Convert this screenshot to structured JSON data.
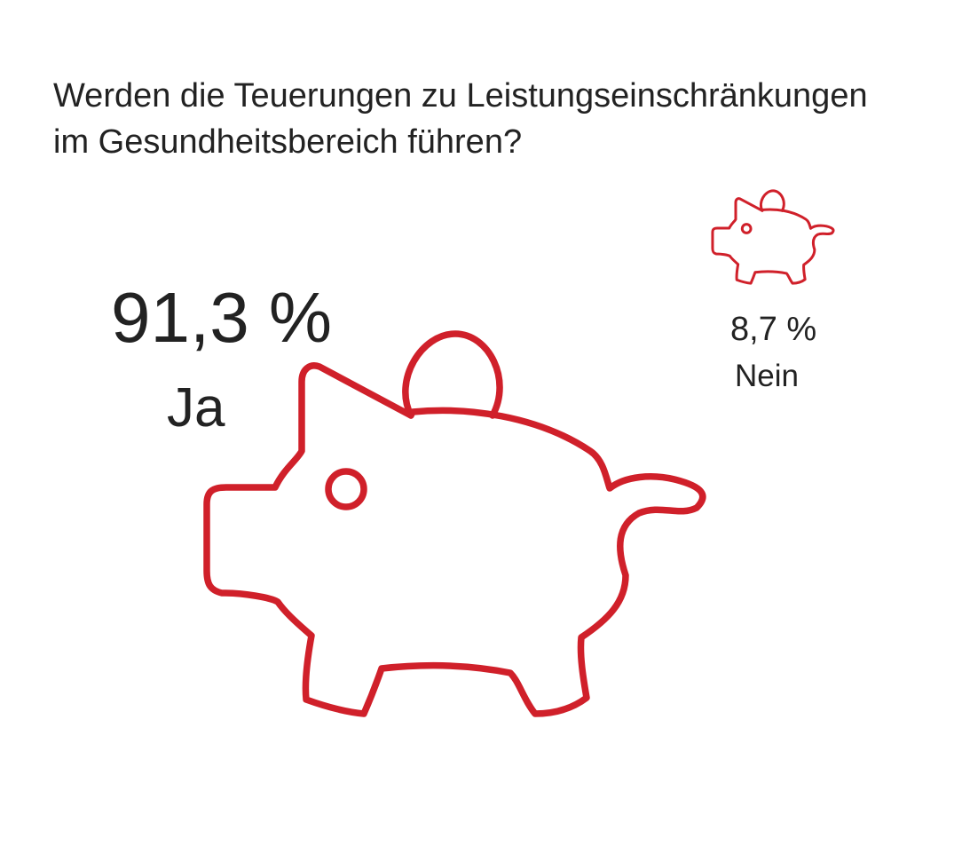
{
  "title_lines": [
    "Werden die Teuerungen zu Leistungseinschränkungen",
    "im Gesundheitsbereich führen?"
  ],
  "chart_data": {
    "type": "pie",
    "title": "Werden die Teuerungen zu Leistungseinschränkungen im Gesundheitsbereich führen?",
    "categories": [
      "Ja",
      "Nein"
    ],
    "values": [
      91.3,
      8.7
    ],
    "unit": "%",
    "value_labels": [
      "91,3 %",
      "8,7 %"
    ],
    "icon": "piggy-bank-icon",
    "accent_color": "#D0202A",
    "text_color": "#222222"
  }
}
